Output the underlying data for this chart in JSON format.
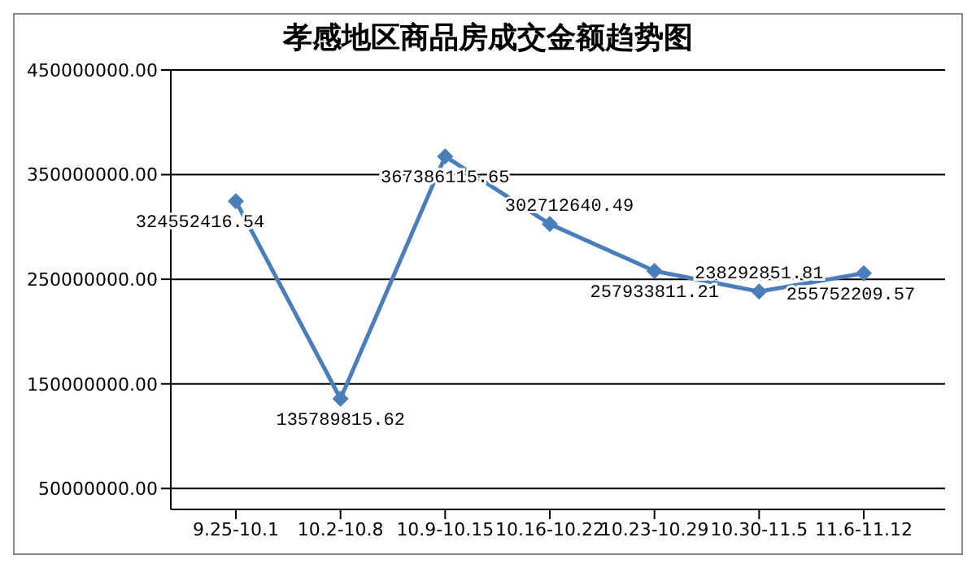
{
  "chart_data": {
    "type": "line",
    "title": "孝感地区商品房成交金额趋势图",
    "categories": [
      "9.25-10.1",
      "10.2-10.8",
      "10.9-10.15",
      "10.16-10.22",
      "10.23-10.29",
      "10.30-11.5",
      "11.6-11.12"
    ],
    "series": [
      {
        "color": "#4a7ebb",
        "values": [
          324552416.54,
          135789815.62,
          367386115.65,
          302712640.49,
          257933811.21,
          238292851.81,
          255752209.57
        ]
      }
    ],
    "ylim": [
      30000000,
      450000000
    ],
    "yticks": [
      {
        "value": 50000000,
        "label": "50000000.00"
      },
      {
        "value": 150000000,
        "label": "150000000.00"
      },
      {
        "value": 250000000,
        "label": "250000000.00"
      },
      {
        "value": 350000000,
        "label": "350000000.00"
      },
      {
        "value": 450000000,
        "label": "450000000.00"
      }
    ],
    "grid": "y",
    "marker": "diamond",
    "line_style": "solid",
    "data_labels": true
  }
}
